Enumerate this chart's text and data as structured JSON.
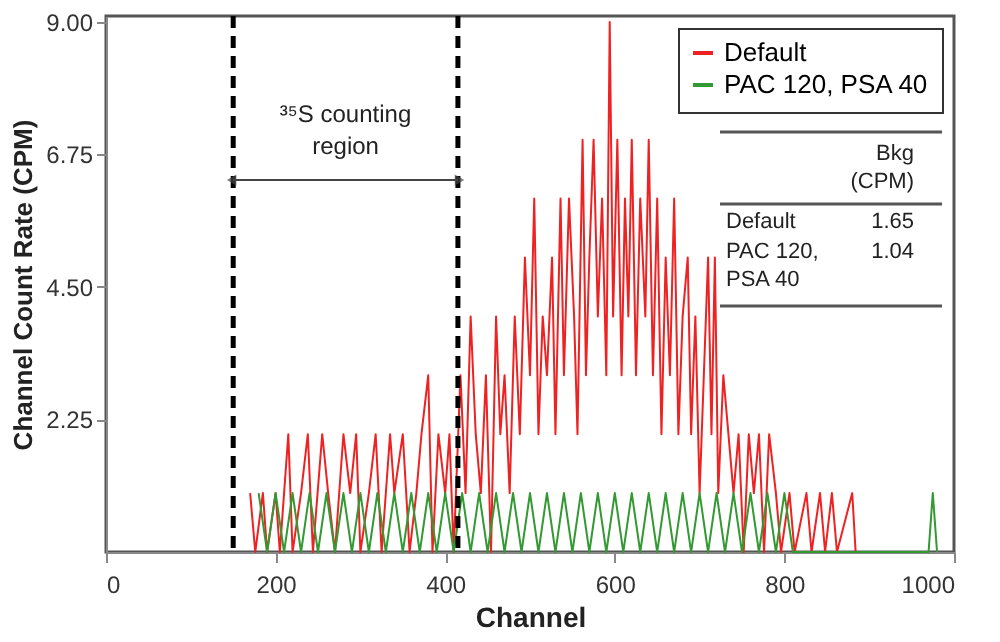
{
  "chart_data": {
    "type": "line",
    "xlabel": "Channel",
    "ylabel": "Channel Count Rate (CPM)",
    "xlim": [
      0,
      1000
    ],
    "xticks": [
      0,
      200,
      400,
      600,
      800,
      1000
    ],
    "ylim": [
      0,
      9.1
    ],
    "yticks": [
      2.25,
      {
        "value": 4.5,
        "label": "4.50"
      },
      6.75,
      {
        "value": 9,
        "label": "9.00"
      }
    ],
    "grid": false,
    "legend": "top right",
    "line_style": "solid",
    "marker": "none",
    "series": [
      {
        "name": "Default",
        "color": "#ee2222",
        "x": [
          170,
          176,
          185,
          190,
          200,
          205,
          215,
          220,
          230,
          238,
          244,
          255,
          262,
          270,
          280,
          288,
          295,
          300,
          310,
          318,
          325,
          335,
          340,
          350,
          358,
          366,
          372,
          380,
          385,
          392,
          400,
          405,
          410,
          418,
          424,
          430,
          436,
          442,
          448,
          454,
          460,
          465,
          470,
          476,
          482,
          488,
          494,
          500,
          505,
          510,
          515,
          520,
          526,
          530,
          536,
          540,
          546,
          552,
          556,
          562,
          566,
          570,
          575,
          580,
          585,
          590,
          594,
          598,
          603,
          608,
          612,
          616,
          620,
          625,
          630,
          636,
          640,
          645,
          650,
          655,
          660,
          665,
          670,
          675,
          680,
          686,
          690,
          695,
          700,
          705,
          710,
          714,
          718,
          722,
          728,
          734,
          740,
          746,
          752,
          758,
          764,
          770,
          776,
          782,
          790,
          796,
          806,
          812,
          826,
          832,
          842,
          848,
          856,
          862,
          880,
          884
        ],
        "values": [
          1,
          0,
          1,
          0,
          1,
          0,
          2,
          0,
          1,
          2,
          0,
          2,
          1,
          0,
          2,
          1,
          2,
          0,
          1,
          2,
          0,
          2,
          1,
          2,
          0,
          1,
          2,
          3,
          0,
          2,
          1,
          2,
          0,
          3,
          1,
          4,
          2,
          1,
          3,
          0,
          4,
          2,
          3,
          1,
          4,
          2,
          5,
          3,
          6,
          2,
          4,
          3,
          5,
          2,
          6,
          3,
          6,
          4,
          2,
          7,
          3,
          5,
          7,
          4,
          6,
          3,
          9,
          4,
          7,
          3,
          6,
          4,
          7,
          3,
          6,
          4,
          7,
          3,
          6,
          2,
          5,
          3,
          6,
          2,
          4,
          5,
          2,
          4,
          1,
          3,
          5,
          2,
          5,
          1,
          3,
          2,
          1,
          2,
          0,
          2,
          1,
          2,
          0,
          2,
          1,
          0,
          1,
          0,
          1,
          0,
          1,
          0,
          1,
          0,
          1,
          0
        ]
      },
      {
        "name": "PAC 120, PSA 40",
        "color": "#339933",
        "x": [
          180,
          190,
          200,
          210,
          220,
          230,
          240,
          250,
          260,
          270,
          280,
          290,
          300,
          310,
          320,
          330,
          340,
          350,
          360,
          370,
          380,
          390,
          400,
          410,
          420,
          430,
          440,
          450,
          460,
          470,
          480,
          490,
          500,
          510,
          520,
          530,
          540,
          550,
          560,
          570,
          580,
          590,
          600,
          610,
          620,
          630,
          640,
          650,
          660,
          670,
          680,
          690,
          700,
          710,
          720,
          730,
          740,
          750,
          760,
          770,
          780,
          790,
          800,
          810,
          970,
          975,
          980
        ],
        "values": [
          1,
          0,
          1,
          0,
          1,
          0,
          1,
          0,
          1,
          0,
          1,
          0,
          1,
          0,
          1,
          0,
          1,
          0,
          1,
          0,
          1,
          0,
          1,
          0,
          1,
          0,
          1,
          0,
          1,
          0,
          1,
          0,
          1,
          0,
          1,
          0,
          1,
          0,
          1,
          0,
          1,
          0,
          1,
          0,
          1,
          0,
          1,
          0,
          1,
          0,
          1,
          0,
          1,
          0,
          1,
          0,
          1,
          0,
          1,
          0,
          1,
          0,
          1,
          0,
          0,
          1,
          0
        ]
      }
    ],
    "ref_lines": [
      {
        "axis": "x",
        "value": 150,
        "color": "#000000",
        "line_style": "dashed"
      },
      {
        "axis": "x",
        "value": 415,
        "color": "#000000",
        "line_style": "dashed"
      }
    ],
    "annotations": [
      "³⁵S counting region",
      "Bkg (CPM)",
      "Default",
      "1.65",
      "PAC 120, PSA 40",
      "1.04"
    ]
  }
}
